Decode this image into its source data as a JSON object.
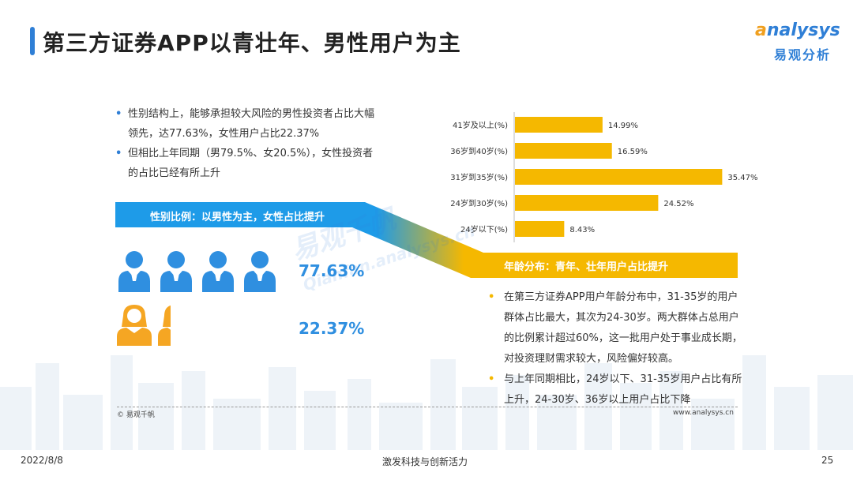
{
  "header": {
    "title": "第三方证券APP以青壮年、男性用户为主",
    "logo_en_a": "a",
    "logo_en_rest": "nalysys",
    "logo_cn": "易观分析"
  },
  "gender": {
    "bullets": [
      "性别结构上，能够承担较大风险的男性投资者占比大幅领先，达77.63%，女性用户占比22.37%",
      "但相比上年同期（男79.5%、女20.5%），女性投资者的占比已经有所上升"
    ],
    "banner": "性别比例：以男性为主，女性占比提升",
    "male_pct_label": "77.63%",
    "female_pct_label": "22.37%",
    "male_share": 0.7763,
    "female_share": 0.2237
  },
  "age": {
    "banner": "年龄分布：青年、壮年用户占比提升",
    "bullets": [
      "在第三方证券APP用户年龄分布中，31-35岁的用户群体占比最大，其次为24-30岁。两大群体占总用户的比例累计超过60%，这一批用户处于事业成长期，对投资理财需求较大，风险偏好较高。",
      "与上年同期相比，24岁以下、31-35岁用户占比有所上升，24-30岁、36岁以上用户占比下降"
    ]
  },
  "watermark": {
    "cn": "易观千帆",
    "en": "Qianfan.analysys.cn"
  },
  "chart_data": {
    "type": "bar",
    "orientation": "horizontal",
    "categories": [
      "41岁及以上(%)",
      "36岁到40岁(%)",
      "31岁到35岁(%)",
      "24岁到30岁(%)",
      "24岁以下(%)"
    ],
    "values": [
      14.99,
      16.59,
      35.47,
      24.52,
      8.43
    ],
    "value_labels": [
      "14.99%",
      "16.59%",
      "35.47%",
      "24.52%",
      "8.43%"
    ],
    "xlim": [
      0,
      40
    ],
    "grid": false,
    "bar_color": "#f5b800"
  },
  "footer": {
    "source": "© 易观千帆",
    "site": "www.analysys.cn",
    "date": "2022/8/8",
    "slogan": "激发科技与创新活力",
    "page": "25"
  },
  "colors": {
    "blue": "#2f8fe0",
    "orange": "#f5a623",
    "yellow": "#f5b800"
  }
}
